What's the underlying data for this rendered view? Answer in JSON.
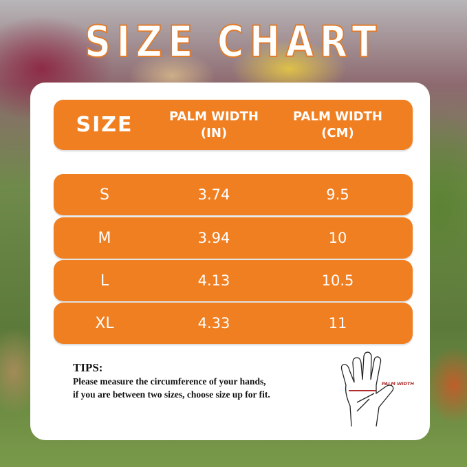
{
  "title": "SIZE CHART",
  "table": {
    "headers": [
      "SIZE",
      "PALM WIDTH\n(IN)",
      "PALM WIDTH\n(CM)"
    ],
    "rows": [
      [
        "S",
        "3.74",
        "9.5"
      ],
      [
        "M",
        "3.94",
        "10"
      ],
      [
        "L",
        "4.13",
        "10.5"
      ],
      [
        "XL",
        "4.33",
        "11"
      ]
    ]
  },
  "tips": {
    "heading": "TIPS:",
    "line1": "Please measure the circumference of your hands,",
    "line2": "if you are between two sizes, choose size up for fit."
  },
  "hand_label": "PALM WIDTH",
  "colors": {
    "accent": "#f07f22",
    "measure_line": "#b02a2a"
  }
}
